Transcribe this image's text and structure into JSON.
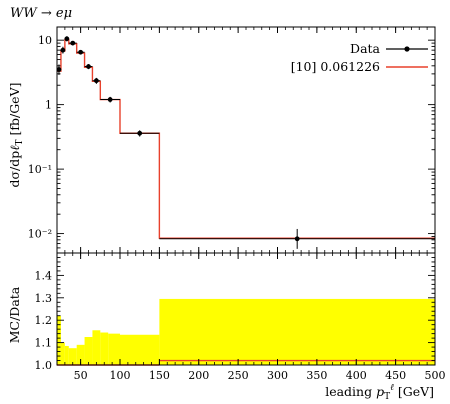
{
  "chart_data": [
    {
      "type": "line",
      "title": "WW → eμ",
      "xlabel": "",
      "ylabel": "dσ/dp_T^ℓ [fb/GeV]",
      "xlim": [
        20,
        500
      ],
      "ylim": [
        0.005,
        16
      ],
      "yscale": "log",
      "grid": false,
      "legend_position": "top-right",
      "y_ticks": [
        {
          "v": 0.01,
          "label": "10⁻²"
        },
        {
          "v": 0.1,
          "label": "10⁻¹"
        },
        {
          "v": 1,
          "label": "1"
        },
        {
          "v": 10,
          "label": "10"
        }
      ],
      "series": [
        {
          "name": "Data",
          "style": "points",
          "color": "#000000",
          "points": [
            {
              "x": 22.5,
              "y": 3.5,
              "xerr": 2.5,
              "yerr_lo": 0.6,
              "yerr_hi": 0.7
            },
            {
              "x": 27.5,
              "y": 7.0,
              "xerr": 2.5,
              "yerr_lo": 0.8,
              "yerr_hi": 0.9
            },
            {
              "x": 32.5,
              "y": 10.5,
              "xerr": 2.5,
              "yerr_lo": 0.9,
              "yerr_hi": 1.0
            },
            {
              "x": 40.0,
              "y": 9.0,
              "xerr": 5.0,
              "yerr_lo": 0.7,
              "yerr_hi": 0.7
            },
            {
              "x": 50.0,
              "y": 6.5,
              "xerr": 5.0,
              "yerr_lo": 0.5,
              "yerr_hi": 0.5
            },
            {
              "x": 60.0,
              "y": 3.9,
              "xerr": 5.0,
              "yerr_lo": 0.35,
              "yerr_hi": 0.35
            },
            {
              "x": 70.0,
              "y": 2.35,
              "xerr": 5.0,
              "yerr_lo": 0.25,
              "yerr_hi": 0.25
            },
            {
              "x": 87.5,
              "y": 1.2,
              "xerr": 12.5,
              "yerr_lo": 0.12,
              "yerr_hi": 0.12
            },
            {
              "x": 125.0,
              "y": 0.36,
              "xerr": 25.0,
              "yerr_lo": 0.04,
              "yerr_hi": 0.04
            },
            {
              "x": 325.0,
              "y": 0.0083,
              "xerr": 175.0,
              "yerr_lo": 0.0025,
              "yerr_hi": 0.0035
            }
          ]
        },
        {
          "name": "[10] 0.061226",
          "style": "step",
          "color": "#e8412c",
          "bins": [
            {
              "lo": 20,
              "hi": 25,
              "y": 3.3
            },
            {
              "lo": 25,
              "hi": 30,
              "y": 6.8
            },
            {
              "lo": 30,
              "hi": 35,
              "y": 10.2
            },
            {
              "lo": 35,
              "hi": 45,
              "y": 8.8
            },
            {
              "lo": 45,
              "hi": 55,
              "y": 6.3
            },
            {
              "lo": 55,
              "hi": 65,
              "y": 3.8
            },
            {
              "lo": 65,
              "hi": 75,
              "y": 2.3
            },
            {
              "lo": 75,
              "hi": 100,
              "y": 1.2
            },
            {
              "lo": 100,
              "hi": 150,
              "y": 0.36
            },
            {
              "lo": 150,
              "hi": 500,
              "y": 0.0085
            }
          ]
        }
      ]
    },
    {
      "type": "area",
      "title": "",
      "xlabel": "leading p_T^ℓ [GeV]",
      "ylabel": "MC/Data",
      "xlim": [
        20,
        500
      ],
      "ylim": [
        1.0,
        1.5
      ],
      "grid": false,
      "x_ticks": [
        {
          "v": 50,
          "label": "50"
        },
        {
          "v": 100,
          "label": "100"
        },
        {
          "v": 150,
          "label": "150"
        },
        {
          "v": 200,
          "label": "200"
        },
        {
          "v": 250,
          "label": "250"
        },
        {
          "v": 300,
          "label": "300"
        },
        {
          "v": 350,
          "label": "350"
        },
        {
          "v": 400,
          "label": "400"
        },
        {
          "v": 450,
          "label": "450"
        },
        {
          "v": 500,
          "label": "500"
        }
      ],
      "y_ticks": [
        {
          "v": 1.0,
          "label": "1.0"
        },
        {
          "v": 1.1,
          "label": "1.1"
        },
        {
          "v": 1.2,
          "label": "1.2"
        },
        {
          "v": 1.3,
          "label": "1.3"
        },
        {
          "v": 1.4,
          "label": "1.4"
        }
      ],
      "band_color": "#ffff00",
      "band": [
        {
          "lo": 20,
          "hi": 25,
          "y": 1.22
        },
        {
          "lo": 25,
          "hi": 30,
          "y": 1.1
        },
        {
          "lo": 30,
          "hi": 35,
          "y": 1.085
        },
        {
          "lo": 35,
          "hi": 45,
          "y": 1.075
        },
        {
          "lo": 45,
          "hi": 55,
          "y": 1.09
        },
        {
          "lo": 55,
          "hi": 65,
          "y": 1.125
        },
        {
          "lo": 65,
          "hi": 75,
          "y": 1.155
        },
        {
          "lo": 75,
          "hi": 85,
          "y": 1.145
        },
        {
          "lo": 85,
          "hi": 100,
          "y": 1.14
        },
        {
          "lo": 100,
          "hi": 150,
          "y": 1.135
        },
        {
          "lo": 150,
          "hi": 500,
          "y": 1.295
        }
      ],
      "ratio_line": {
        "color": "#e8412c",
        "segments": [
          {
            "lo": 20,
            "hi": 150,
            "y": 1.0
          },
          {
            "lo": 150,
            "hi": 500,
            "y": 1.02
          }
        ]
      }
    }
  ]
}
